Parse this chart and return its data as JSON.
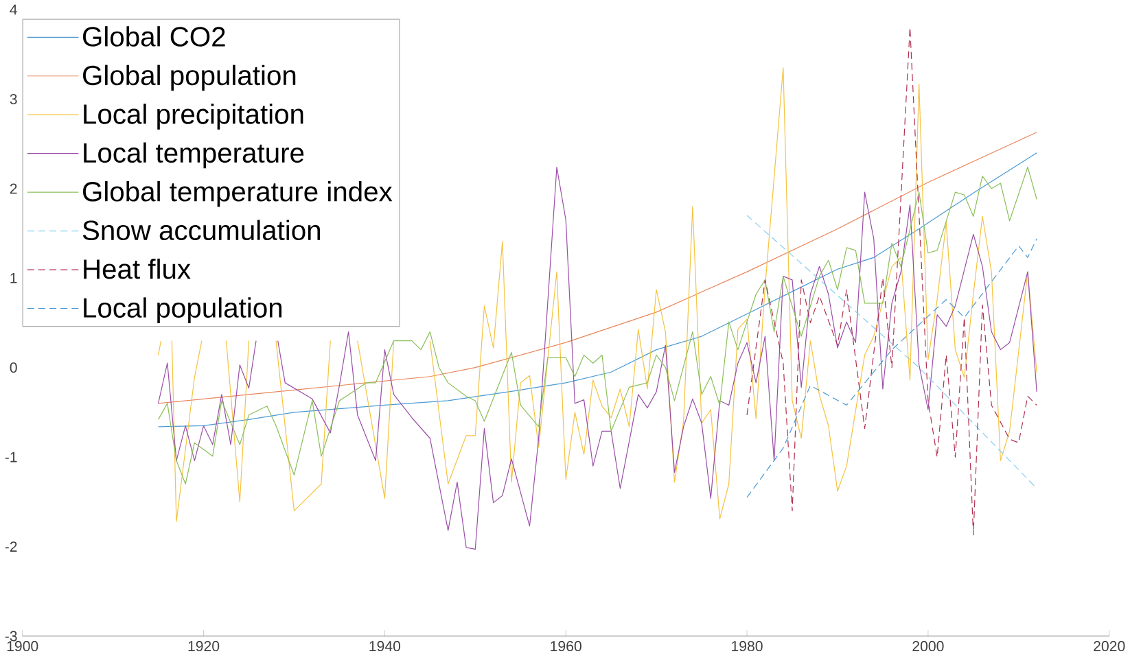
{
  "chart_data": {
    "type": "line",
    "xlim": [
      1900,
      2020
    ],
    "ylim": [
      -3,
      4
    ],
    "xticks": [
      1900,
      1920,
      1940,
      1960,
      1980,
      2000,
      2020
    ],
    "yticks": [
      -3,
      -2,
      -1,
      0,
      1,
      2,
      3,
      4
    ],
    "legend": "top left",
    "series": [
      {
        "name": "Global CO2",
        "color": "#4a9ad4",
        "line_style": "solid",
        "x": [
          1915,
          1920,
          1925,
          1930,
          1940,
          1947,
          1955,
          1960,
          1965,
          1970,
          1975,
          1980,
          1985,
          1990,
          1994,
          1999,
          2005,
          2012
        ],
        "values": [
          -0.66,
          -0.65,
          -0.58,
          -0.5,
          -0.42,
          -0.37,
          -0.25,
          -0.17,
          -0.05,
          0.2,
          0.35,
          0.6,
          0.85,
          1.1,
          1.23,
          1.55,
          1.95,
          2.4
        ]
      },
      {
        "name": "Global population",
        "color": "#e8865a",
        "line_style": "solid",
        "x": [
          1915,
          1930,
          1945,
          1950,
          1960,
          1970,
          1980,
          1990,
          2000,
          2012
        ],
        "values": [
          -0.4,
          -0.25,
          -0.1,
          0.0,
          0.28,
          0.62,
          1.07,
          1.55,
          2.07,
          2.63
        ]
      },
      {
        "name": "Local precipitation",
        "color": "#f5c342",
        "line_style": "solid",
        "x": [
          1915,
          1915.3,
          1916,
          1916.5,
          1917,
          1919,
          1919.8,
          1921,
          1922.5,
          1924,
          1925,
          1926,
          1928,
          1930,
          1933,
          1934,
          1935,
          1937,
          1940,
          1941,
          1943,
          1945,
          1947,
          1949,
          1950,
          1951,
          1952,
          1953,
          1954,
          1955,
          1956,
          1957,
          1959,
          1960,
          1961,
          1962,
          1963,
          1964,
          1965,
          1966,
          1967,
          1968,
          1969,
          1970,
          1971,
          1972,
          1973,
          1974,
          1975,
          1976,
          1977,
          1978,
          1979,
          1980,
          1981,
          1982,
          1984,
          1985,
          1986,
          1987,
          1988,
          1989,
          1990,
          1991,
          1993,
          1994,
          1996,
          1997,
          1998,
          1999,
          2000,
          2001,
          2002,
          2003,
          2004,
          2005,
          2006,
          2007,
          2008,
          2009,
          2011,
          2012
        ],
        "values": [
          0.14,
          0.3,
          null,
          0.3,
          -1.72,
          -0.11,
          0.3,
          null,
          0.3,
          -1.5,
          0.3,
          null,
          0.3,
          -1.6,
          -1.3,
          0.3,
          null,
          0.3,
          -1.46,
          0.3,
          null,
          0.3,
          -1.3,
          -0.76,
          -0.76,
          0.69,
          0.22,
          1.41,
          -1.28,
          -0.17,
          -0.09,
          -0.89,
          1.07,
          -1.25,
          -0.5,
          -0.97,
          -0.14,
          -0.43,
          -0.56,
          -0.24,
          -0.66,
          0.43,
          -0.24,
          0.87,
          0.4,
          -1.28,
          -0.6,
          1.8,
          -0.62,
          -0.47,
          -1.69,
          -1.3,
          0.43,
          0.54,
          -0.57,
          0.9,
          3.35,
          -0.37,
          -0.79,
          0.3,
          -0.31,
          -0.65,
          -1.38,
          -1.1,
          0.14,
          0.35,
          1.13,
          1.23,
          -0.14,
          3.17,
          0.09,
          0.76,
          1.62,
          0.2,
          -0.11,
          0.82,
          1.69,
          1.07,
          -1.04,
          -0.71,
          1.07,
          -0.06
        ]
      },
      {
        "name": "Local temperature",
        "color": "#9b4fa8",
        "line_style": "solid",
        "x": [
          1915,
          1916,
          1917,
          1918,
          1919,
          1920,
          1921,
          1922,
          1923,
          1924,
          1925,
          1925.8,
          1927,
          1928.2,
          1929,
          1932,
          1934,
          1935,
          1936,
          1937,
          1939,
          1940,
          1941,
          1943,
          1945,
          1947,
          1948,
          1949,
          1950,
          1951,
          1952,
          1953,
          1954,
          1956,
          1957,
          1959,
          1960,
          1961,
          1962,
          1963,
          1964,
          1965,
          1966,
          1968,
          1969,
          1970,
          1971,
          1972,
          1973,
          1974,
          1975,
          1976,
          1977,
          1978,
          1979,
          1980,
          1981,
          1982,
          1983,
          1984,
          1985,
          1986,
          1987,
          1988,
          1989,
          1990,
          1991,
          1992,
          1993,
          1994,
          1995,
          1996,
          1997,
          1998,
          1999,
          2000,
          2001,
          2002,
          2003,
          2005,
          2006,
          2007,
          2008,
          2009,
          2011,
          2012
        ],
        "values": [
          -0.4,
          0.05,
          -1.04,
          -0.65,
          -1.04,
          -0.65,
          -0.86,
          -0.3,
          -0.86,
          0.03,
          -0.23,
          0.3,
          null,
          0.3,
          -0.17,
          -0.35,
          -0.73,
          -0.2,
          0.4,
          -0.53,
          -1.04,
          0.2,
          -0.3,
          -0.56,
          -0.79,
          -1.82,
          -1.28,
          -2.01,
          -2.03,
          -0.68,
          -1.51,
          -1.43,
          -1.02,
          -1.77,
          -0.79,
          2.24,
          1.65,
          -0.4,
          -0.36,
          -1.1,
          -0.71,
          -0.71,
          -1.35,
          -0.3,
          -0.45,
          -0.27,
          0.25,
          -1.17,
          -0.66,
          -0.35,
          -0.62,
          -1.46,
          -0.37,
          -0.42,
          0.05,
          0.28,
          -0.17,
          0.35,
          -1.04,
          1.02,
          0.98,
          -0.22,
          0.82,
          1.13,
          0.82,
          0.22,
          0.51,
          0.28,
          1.96,
          1.44,
          -0.24,
          0.72,
          1.07,
          1.82,
          0.03,
          -0.47,
          0.59,
          0.46,
          0.69,
          1.49,
          1.13,
          0.4,
          0.2,
          0.28,
          1.07,
          -0.27
        ]
      },
      {
        "name": "Global temperature index",
        "color": "#8bbf5a",
        "line_style": "solid",
        "x": [
          1915,
          1916,
          1917,
          1918,
          1919,
          1921,
          1922,
          1924,
          1925,
          1927,
          1928,
          1930,
          1932,
          1933,
          1935,
          1938,
          1939,
          1941,
          1943,
          1944,
          1945,
          1946,
          1947,
          1949,
          1950,
          1951,
          1954,
          1955,
          1957,
          1958,
          1960,
          1961,
          1962,
          1963,
          1964,
          1965,
          1967,
          1969,
          1970,
          1971,
          1972,
          1974,
          1975,
          1976,
          1977,
          1978,
          1979,
          1981,
          1982,
          1983,
          1984,
          1986,
          1988,
          1989,
          1990,
          1991,
          1992,
          1993,
          1995,
          1996,
          1997,
          1999,
          2000,
          2001,
          2003,
          2004,
          2005,
          2006,
          2007,
          2008,
          2009,
          2011,
          2012
        ],
        "values": [
          -0.58,
          -0.4,
          -1.04,
          -1.3,
          -0.84,
          -0.99,
          -0.37,
          -0.86,
          -0.53,
          -0.43,
          -0.65,
          -1.2,
          -0.37,
          -0.99,
          -0.37,
          -0.17,
          -0.17,
          0.3,
          0.3,
          0.2,
          0.4,
          0.0,
          -0.17,
          -0.32,
          -0.37,
          -0.6,
          0.17,
          -0.42,
          -0.66,
          0.11,
          0.11,
          -0.1,
          0.14,
          0.05,
          0.14,
          -0.71,
          -0.22,
          -0.17,
          0.14,
          0.0,
          -0.37,
          0.4,
          -0.3,
          -0.1,
          -0.42,
          0.51,
          0.2,
          0.82,
          0.98,
          0.4,
          1.02,
          0.35,
          1.02,
          1.2,
          0.87,
          1.34,
          1.31,
          0.72,
          0.72,
          1.39,
          1.13,
          1.96,
          1.28,
          1.31,
          1.96,
          1.93,
          1.69,
          2.14,
          2.0,
          2.06,
          1.64,
          2.24,
          1.88
        ]
      },
      {
        "name": "Snow accumulation",
        "color": "#87cff0",
        "line_style": "dashed",
        "x": [
          1980,
          1999,
          2012
        ],
        "values": [
          1.7,
          0.0,
          -1.35
        ]
      },
      {
        "name": "Heat flux",
        "color": "#b03050",
        "line_style": "dashed",
        "x": [
          1980,
          1982,
          1984,
          1985,
          1986,
          1987,
          1988,
          1990,
          1991,
          1993,
          1995,
          1996,
          1998,
          2000,
          2001,
          2002,
          2003,
          2004,
          2005,
          2006,
          2007,
          2009,
          2010,
          2011,
          2012
        ],
        "values": [
          -0.53,
          0.98,
          0.05,
          -1.6,
          0.98,
          0.5,
          0.8,
          0.25,
          0.87,
          -0.68,
          1.0,
          0.0,
          3.8,
          -0.37,
          -1.0,
          0.14,
          -1.0,
          0.56,
          -1.87,
          0.7,
          -0.42,
          -0.8,
          -0.84,
          -0.32,
          -0.42
        ]
      },
      {
        "name": "Local population",
        "color": "#4a9ad4",
        "line_style": "dashed",
        "x": [
          1980,
          1984,
          1987,
          1991,
          1996,
          2002,
          2004,
          2010,
          2011,
          2012
        ],
        "values": [
          -1.45,
          -0.9,
          -0.2,
          -0.42,
          0.2,
          0.76,
          0.56,
          1.36,
          1.23,
          1.44
        ]
      }
    ]
  }
}
